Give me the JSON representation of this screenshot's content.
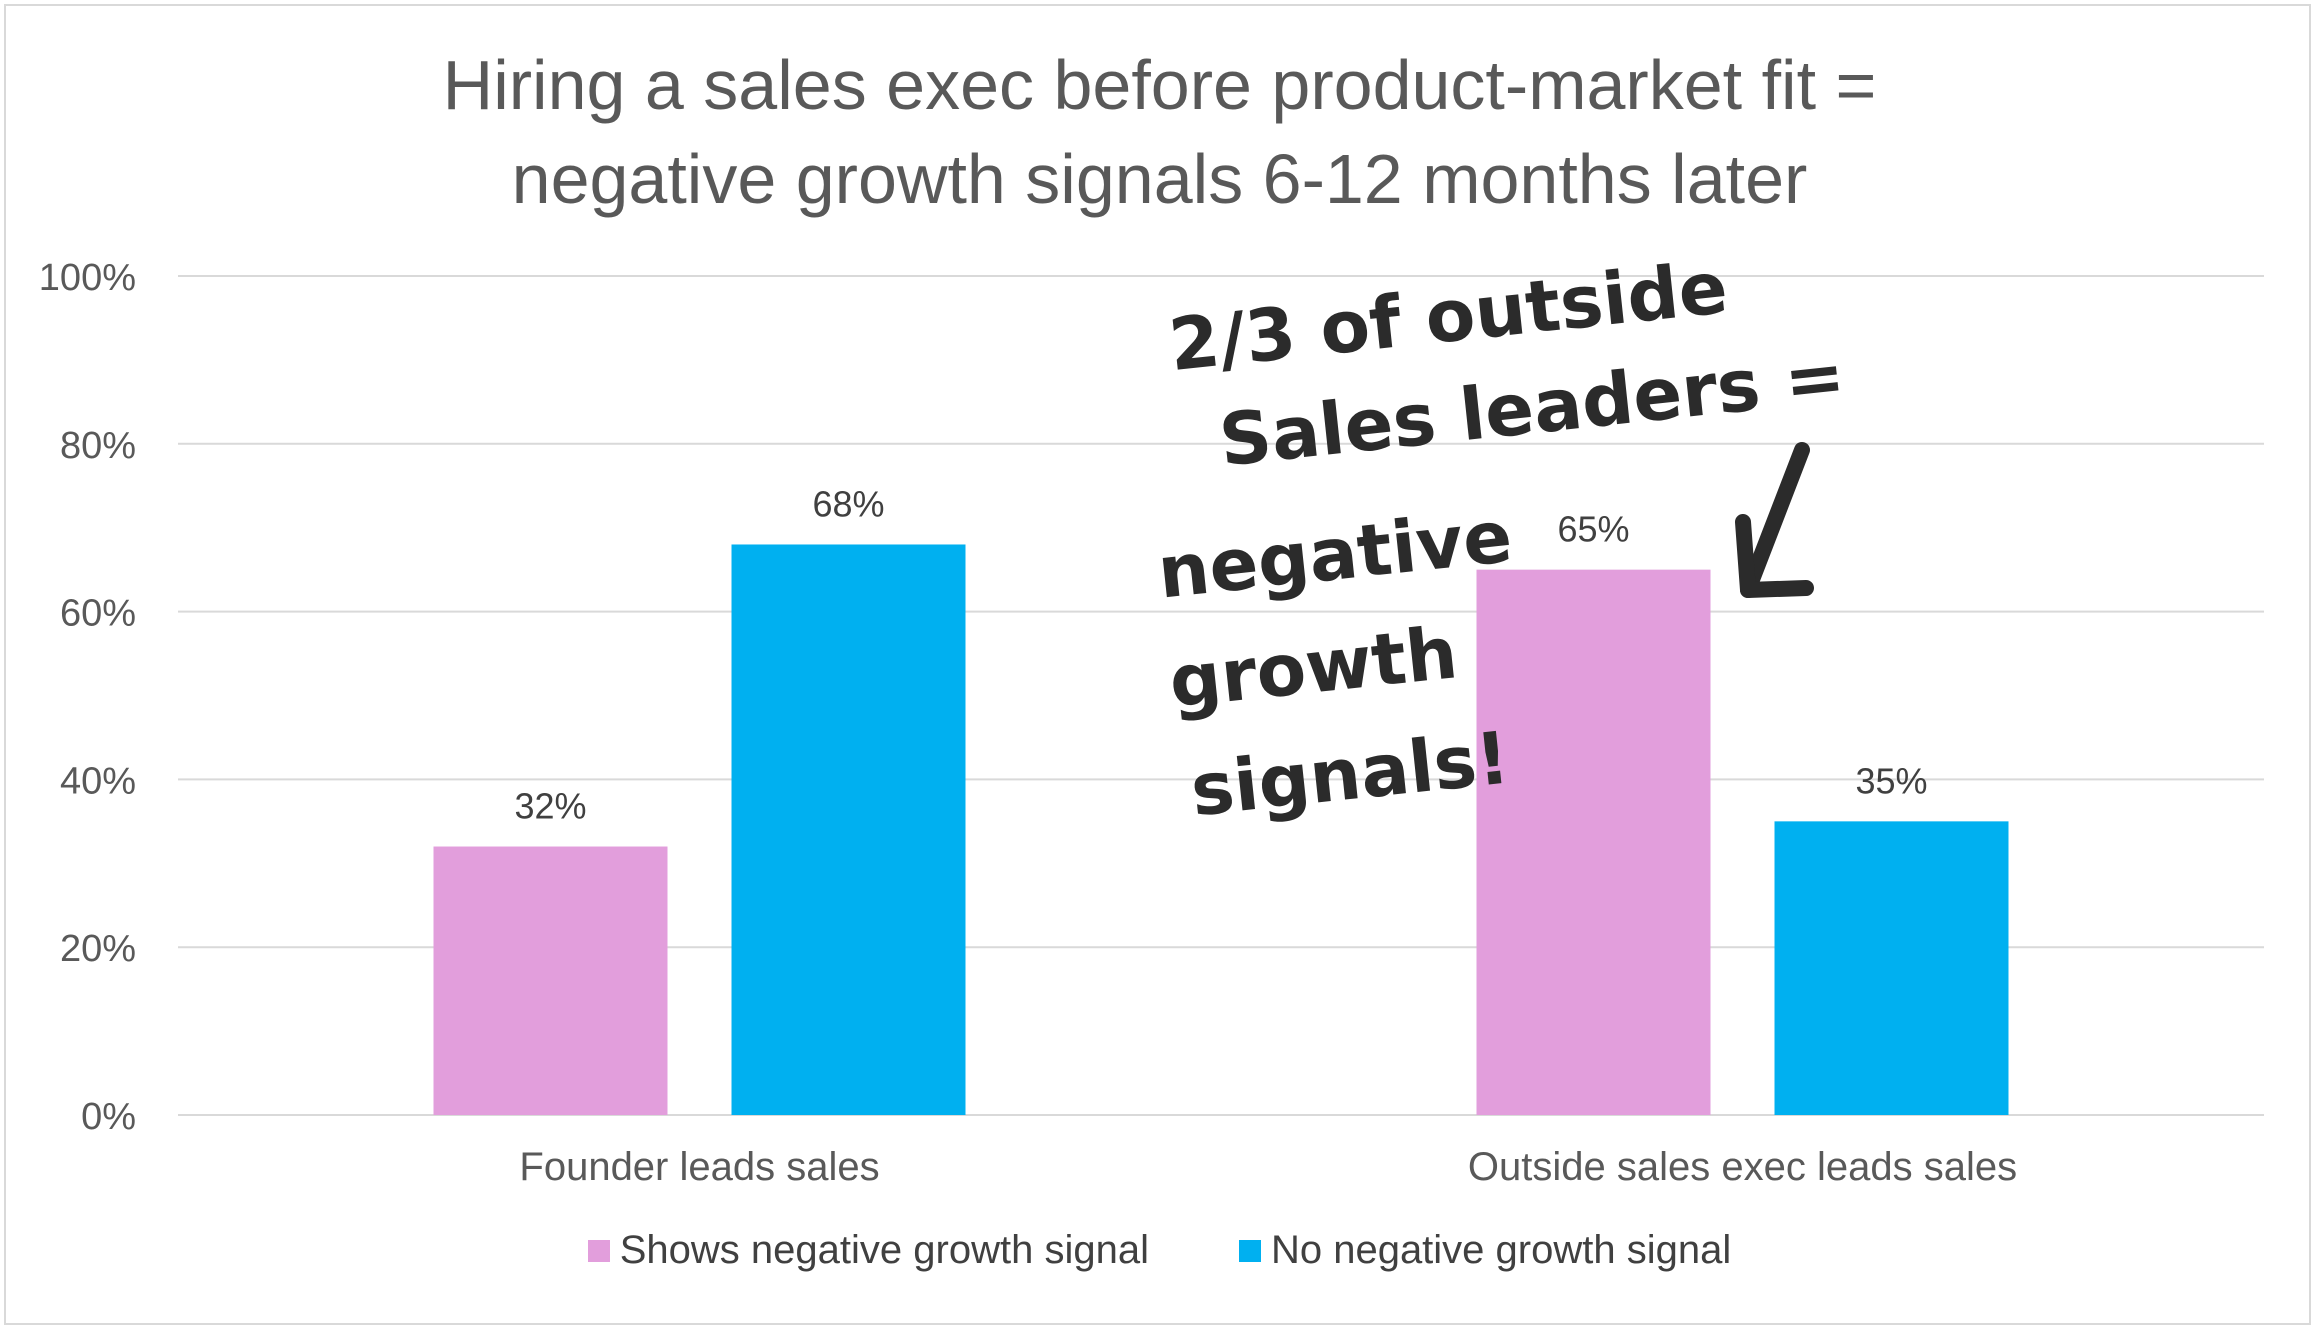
{
  "chart_data": {
    "type": "bar",
    "title": [
      "Hiring a sales exec before product-market fit =",
      "negative growth signals 6-12 months later"
    ],
    "categories": [
      "Founder leads sales",
      "Outside sales exec leads sales"
    ],
    "series": [
      {
        "name": "Shows negative growth signal",
        "color": "#e29edc",
        "values": [
          32,
          65
        ]
      },
      {
        "name": "No negative growth signal",
        "color": "#00b0f0",
        "values": [
          68,
          35
        ]
      }
    ],
    "data_labels": [
      [
        "32%",
        "65%"
      ],
      [
        "68%",
        "35%"
      ]
    ],
    "ylim": [
      0,
      100
    ],
    "y_ticks": [
      "0%",
      "20%",
      "40%",
      "60%",
      "80%",
      "100%"
    ],
    "y_tick_values": [
      0,
      20,
      40,
      60,
      80,
      100
    ],
    "grid": true,
    "legend_position": "bottom",
    "annotation": {
      "lines": [
        "2/3 of outside",
        "Sales leaders =",
        "negative",
        "growth",
        "signals!"
      ],
      "arrow": "pointing down-left toward the 65% bar"
    }
  }
}
